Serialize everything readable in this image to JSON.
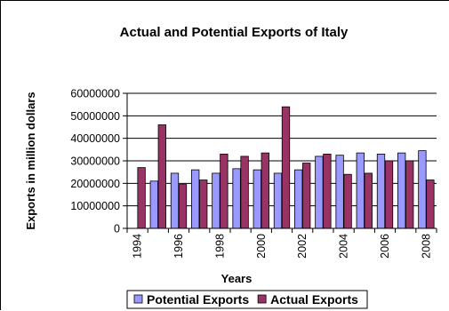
{
  "chart_data": {
    "type": "bar",
    "title": "Actual and Potential Exports of Italy",
    "xlabel": "Years",
    "ylabel": "Exports in million dollars",
    "categories": [
      "1994",
      "1995",
      "1996",
      "1997",
      "1998",
      "1999",
      "2000",
      "2001",
      "2002",
      "2003",
      "2004",
      "2005",
      "2006",
      "2007",
      "2008"
    ],
    "x_tick_labels": [
      "1994",
      "",
      "1996",
      "",
      "1998",
      "",
      "2000",
      "",
      "2002",
      "",
      "2004",
      "",
      "2006",
      "",
      "2008"
    ],
    "ylim": [
      0,
      60000000
    ],
    "y_ticks": [
      0,
      10000000,
      20000000,
      30000000,
      40000000,
      50000000,
      60000000
    ],
    "y_tick_labels": [
      "0",
      "10000000",
      "20000000",
      "30000000",
      "40000000",
      "50000000",
      "60000000"
    ],
    "series": [
      {
        "name": "Potential Exports",
        "color": "#9999FF",
        "values": [
          null,
          21000000,
          24500000,
          26000000,
          24500000,
          26500000,
          26000000,
          24500000,
          26000000,
          32000000,
          32500000,
          33500000,
          33000000,
          33500000,
          34500000
        ]
      },
      {
        "name": "Actual Exports",
        "color": "#993366",
        "values": [
          27000000,
          46000000,
          19500000,
          21500000,
          33000000,
          32000000,
          33500000,
          54000000,
          29000000,
          33000000,
          24000000,
          24500000,
          30000000,
          30000000,
          21500000
        ]
      }
    ],
    "grid": "horizontal",
    "legend_position": "bottom"
  }
}
